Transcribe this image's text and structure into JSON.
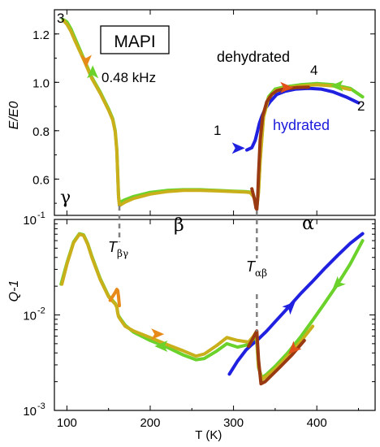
{
  "chart_data": [
    {
      "panel": "top",
      "type": "line",
      "ylabel": "E/E0",
      "xlim": [
        85,
        470
      ],
      "ylim": [
        0.45,
        1.3
      ],
      "yticks": [
        0.6,
        0.8,
        1.0,
        1.2
      ],
      "ytick_labels": [
        "0.6",
        "0.8",
        "1.0",
        "1.2"
      ],
      "annotations": {
        "material": "MAPI",
        "frequency": "0.48 kHz",
        "dehydrated": "dehydrated",
        "hydrated": "hydrated",
        "point_1": "1",
        "point_2": "2",
        "point_3": "3",
        "point_4": "4",
        "phase_gamma": "γ",
        "phase_beta": "β",
        "phase_alpha": "α"
      },
      "series": [
        {
          "color": "#2020e0",
          "x": [
            316,
            322,
            326,
            329,
            331,
            334,
            338,
            344,
            352,
            362,
            375,
            390,
            405,
            420,
            435,
            450
          ],
          "y": [
            0.72,
            0.73,
            0.76,
            0.8,
            0.83,
            0.86,
            0.89,
            0.92,
            0.95,
            0.963,
            0.972,
            0.975,
            0.972,
            0.96,
            0.94,
            0.915
          ]
        },
        {
          "color": "#6ad22a",
          "x": [
            95,
            100,
            105,
            110,
            120,
            130,
            140,
            150,
            155,
            158,
            160,
            161,
            162,
            163,
            164,
            170,
            180,
            200,
            220,
            240,
            260,
            280,
            300,
            315,
            320,
            324,
            327,
            328,
            330,
            332,
            336,
            342,
            350,
            360,
            380,
            400,
            420,
            440,
            455
          ],
          "y": [
            1.26,
            1.25,
            1.22,
            1.18,
            1.1,
            1.02,
            0.96,
            0.89,
            0.85,
            0.8,
            0.72,
            0.62,
            0.53,
            0.5,
            0.505,
            0.515,
            0.528,
            0.545,
            0.553,
            0.556,
            0.556,
            0.553,
            0.55,
            0.548,
            0.546,
            0.53,
            0.5,
            0.49,
            0.55,
            0.68,
            0.86,
            0.94,
            0.972,
            0.98,
            0.99,
            0.995,
            0.99,
            0.975,
            0.94
          ]
        },
        {
          "color": "#c9b01a",
          "x": [
            96,
            100,
            105,
            110,
            120,
            130,
            140,
            150,
            155,
            158,
            160,
            161,
            162,
            163,
            164,
            170,
            180,
            200,
            220,
            240,
            260,
            280,
            300,
            315,
            320,
            324,
            327,
            328,
            330,
            332,
            336,
            342,
            350,
            360,
            380,
            400,
            420,
            440
          ],
          "y": [
            1.255,
            1.24,
            1.21,
            1.17,
            1.095,
            1.015,
            0.955,
            0.885,
            0.845,
            0.795,
            0.715,
            0.615,
            0.525,
            0.492,
            0.492,
            0.505,
            0.52,
            0.538,
            0.548,
            0.553,
            0.553,
            0.551,
            0.548,
            0.546,
            0.544,
            0.528,
            0.498,
            0.485,
            0.545,
            0.675,
            0.855,
            0.935,
            0.965,
            0.975,
            0.985,
            0.99,
            0.985,
            0.97
          ]
        },
        {
          "color": "#9a3a12",
          "x": [
            322,
            325,
            327,
            328,
            329,
            330,
            332,
            335,
            340,
            346,
            352,
            360,
            375,
            390
          ],
          "y": [
            0.56,
            0.52,
            0.48,
            0.475,
            0.52,
            0.62,
            0.76,
            0.86,
            0.92,
            0.95,
            0.965,
            0.972,
            0.978,
            0.98
          ]
        }
      ],
      "arrows": [
        {
          "color": "#e88a1a",
          "x": 123,
          "y": 1.09,
          "dir": "down"
        },
        {
          "color": "#6ad22a",
          "x": 131,
          "y": 1.04,
          "dir": "up"
        },
        {
          "color": "#2020e0",
          "x": 305,
          "y": 0.728,
          "dir": "right"
        },
        {
          "color": "#e05018",
          "x": 363,
          "y": 0.978,
          "dir": "right"
        },
        {
          "color": "#6ad22a",
          "x": 425,
          "y": 0.985,
          "dir": "left"
        }
      ]
    },
    {
      "panel": "bottom",
      "type": "line",
      "xlabel": "T (K)",
      "ylabel": "Q-1",
      "yscale": "log",
      "xlim": [
        85,
        470
      ],
      "ylim": [
        0.001,
        0.1
      ],
      "xticks": [
        100,
        200,
        300,
        400
      ],
      "xtick_labels": [
        "100",
        "200",
        "300",
        "400"
      ],
      "yticks": [
        0.001,
        0.01,
        0.1
      ],
      "ytick_labels": [
        "10",
        "10",
        "10"
      ],
      "ytick_exponents": [
        "-3",
        "-2",
        "-1"
      ],
      "annotations": {
        "T_beta_gamma": "T",
        "T_beta_gamma_sub": "βγ",
        "T_alpha_beta": "T",
        "T_alpha_beta_sub": "αβ"
      },
      "series": [
        {
          "color": "#2020e0",
          "x": [
            295,
            305,
            315,
            322,
            330,
            340,
            350,
            365,
            380,
            395,
            410,
            425,
            440,
            455
          ],
          "y": [
            0.0024,
            0.0033,
            0.0043,
            0.0049,
            0.0056,
            0.0068,
            0.0085,
            0.0118,
            0.0165,
            0.0225,
            0.031,
            0.042,
            0.056,
            0.071
          ]
        },
        {
          "color": "#6ad22a",
          "x": [
            93,
            100,
            108,
            115,
            120,
            125,
            130,
            140,
            150,
            158,
            160,
            161,
            162,
            164,
            170,
            180,
            200,
            220,
            240,
            255,
            265,
            280,
            292,
            305,
            318,
            324,
            327,
            328,
            330,
            334,
            340,
            350,
            365,
            380,
            395,
            410,
            425,
            440,
            455
          ],
          "y": [
            0.021,
            0.035,
            0.058,
            0.071,
            0.069,
            0.056,
            0.041,
            0.024,
            0.0158,
            0.0132,
            0.0122,
            0.0105,
            0.0098,
            0.0092,
            0.0078,
            0.0066,
            0.0054,
            0.0046,
            0.0038,
            0.0034,
            0.0035,
            0.0042,
            0.005,
            0.0046,
            0.0049,
            0.0056,
            0.0061,
            0.0052,
            0.0028,
            0.0022,
            0.0024,
            0.0029,
            0.004,
            0.0058,
            0.0088,
            0.0135,
            0.021,
            0.034,
            0.06
          ]
        },
        {
          "color": "#c9b01a",
          "x": [
            94,
            100,
            108,
            115,
            120,
            125,
            130,
            140,
            150,
            158,
            160,
            161,
            162,
            164,
            170,
            180,
            200,
            220,
            240,
            255,
            265,
            280,
            292,
            305,
            318,
            324,
            327,
            328,
            330,
            334,
            340,
            350,
            365,
            380,
            395
          ],
          "y": [
            0.021,
            0.034,
            0.057,
            0.07,
            0.068,
            0.055,
            0.04,
            0.0235,
            0.0155,
            0.013,
            0.012,
            0.0104,
            0.0096,
            0.009,
            0.0076,
            0.0068,
            0.0058,
            0.0049,
            0.0042,
            0.0037,
            0.0039,
            0.0048,
            0.0058,
            0.0054,
            0.0052,
            0.006,
            0.0066,
            0.0057,
            0.0029,
            0.0021,
            0.0023,
            0.0027,
            0.0037,
            0.0052,
            0.0076
          ]
        },
        {
          "color": "#9a3a12",
          "x": [
            318,
            322,
            326,
            328,
            330,
            333,
            338,
            345,
            355,
            370,
            385
          ],
          "y": [
            0.0047,
            0.0054,
            0.0063,
            0.0068,
            0.0034,
            0.0019,
            0.002,
            0.0023,
            0.0028,
            0.0038,
            0.0054
          ]
        },
        {
          "color": "#e88a1a",
          "x": [
            152,
            158,
            160,
            161,
            162,
            163
          ],
          "y": [
            0.0142,
            0.0172,
            0.0185,
            0.018,
            0.0155,
            0.0125
          ]
        }
      ],
      "arrows": [
        {
          "color": "#e88a1a",
          "x": 208,
          "y": 0.0063,
          "dir": "right"
        },
        {
          "color": "#6ad22a",
          "x": 214,
          "y": 0.0047,
          "dir": "left"
        },
        {
          "color": "#2020e0",
          "x": 368,
          "y": 0.0122,
          "dir": "upright"
        },
        {
          "color": "#6ad22a",
          "x": 425,
          "y": 0.021,
          "dir": "downleft"
        },
        {
          "color": "#e05018",
          "x": 372,
          "y": 0.0044,
          "dir": "downleft"
        }
      ]
    }
  ]
}
